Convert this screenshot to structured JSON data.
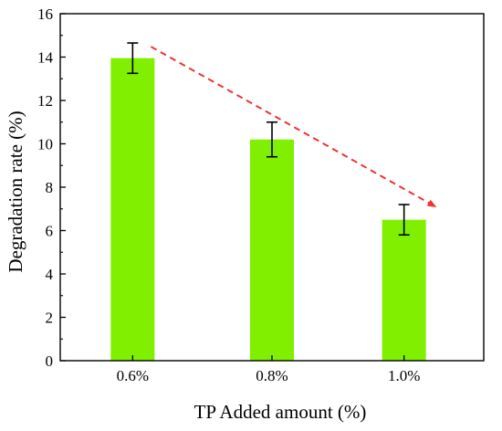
{
  "chart_data": {
    "type": "bar",
    "categories": [
      "0.6%",
      "0.8%",
      "1.0%"
    ],
    "values": [
      13.95,
      10.2,
      6.5
    ],
    "errors": [
      0.7,
      0.8,
      0.7
    ],
    "xlabel": "TP Added amount (%)",
    "ylabel": "Degradation rate (%)",
    "ylim": [
      0,
      16
    ],
    "yticks": [
      0,
      2,
      4,
      6,
      8,
      10,
      12,
      14,
      16
    ],
    "grid": false,
    "bar_color": "#80f000",
    "trend_arrow_color": "#ee3333"
  }
}
